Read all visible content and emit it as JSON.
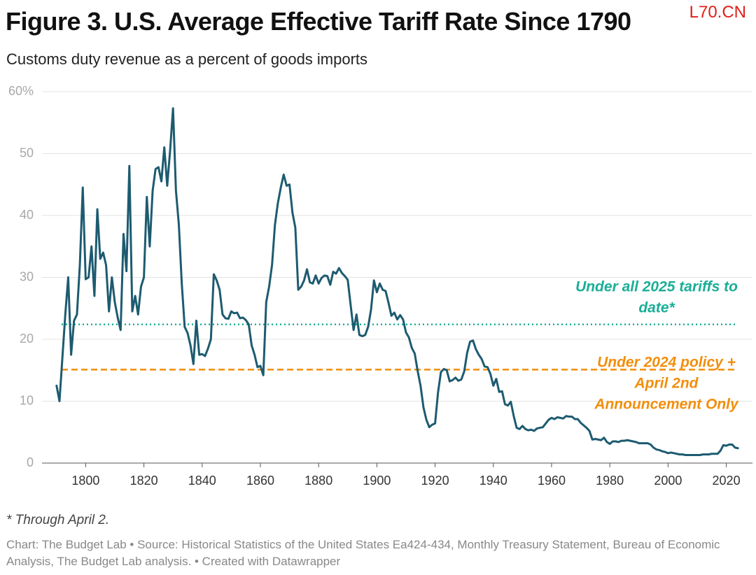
{
  "chart_data": {
    "type": "line",
    "title": "Figure 3. U.S. Average Effective Tariff Rate Since 1790",
    "subtitle": "Customs duty revenue as a percent of goods imports",
    "watermark": "L70.CN",
    "note": "* Through April 2.",
    "source": "Chart: The Budget Lab • Source: Historical Statistics of the United States Ea424-434, Monthly Treasury Statement, Bureau of Economic Analysis, The Budget Lab analysis. • Created with Datawrapper",
    "xlim": [
      1785,
      2029
    ],
    "xticks": [
      1800,
      1820,
      1840,
      1860,
      1880,
      1900,
      1920,
      1940,
      1960,
      1980,
      2000,
      2020
    ],
    "ylim": [
      0,
      60
    ],
    "yticks": [
      0,
      10,
      20,
      30,
      40,
      50,
      {
        "value": 60,
        "label": "60%"
      }
    ],
    "grid": true,
    "x": [
      1790,
      1791,
      1792,
      1793,
      1794,
      1795,
      1796,
      1797,
      1798,
      1799,
      1800,
      1801,
      1802,
      1803,
      1804,
      1805,
      1806,
      1807,
      1808,
      1809,
      1810,
      1811,
      1812,
      1813,
      1814,
      1815,
      1816,
      1817,
      1818,
      1819,
      1820,
      1821,
      1822,
      1823,
      1824,
      1825,
      1826,
      1827,
      1828,
      1829,
      1830,
      1831,
      1832,
      1833,
      1834,
      1835,
      1836,
      1837,
      1838,
      1839,
      1840,
      1841,
      1842,
      1843,
      1844,
      1845,
      1846,
      1847,
      1848,
      1849,
      1850,
      1851,
      1852,
      1853,
      1854,
      1855,
      1856,
      1857,
      1858,
      1859,
      1860,
      1861,
      1862,
      1863,
      1864,
      1865,
      1866,
      1867,
      1868,
      1869,
      1870,
      1871,
      1872,
      1873,
      1874,
      1875,
      1876,
      1877,
      1878,
      1879,
      1880,
      1881,
      1882,
      1883,
      1884,
      1885,
      1886,
      1887,
      1888,
      1889,
      1890,
      1891,
      1892,
      1893,
      1894,
      1895,
      1896,
      1897,
      1898,
      1899,
      1900,
      1901,
      1902,
      1903,
      1904,
      1905,
      1906,
      1907,
      1908,
      1909,
      1910,
      1911,
      1912,
      1913,
      1914,
      1915,
      1916,
      1917,
      1918,
      1919,
      1920,
      1921,
      1922,
      1923,
      1924,
      1925,
      1926,
      1927,
      1928,
      1929,
      1930,
      1931,
      1932,
      1933,
      1934,
      1935,
      1936,
      1937,
      1938,
      1939,
      1940,
      1941,
      1942,
      1943,
      1944,
      1945,
      1946,
      1947,
      1948,
      1949,
      1950,
      1951,
      1952,
      1953,
      1954,
      1955,
      1956,
      1957,
      1958,
      1959,
      1960,
      1961,
      1962,
      1963,
      1964,
      1965,
      1966,
      1967,
      1968,
      1969,
      1970,
      1971,
      1972,
      1973,
      1974,
      1975,
      1976,
      1977,
      1978,
      1979,
      1980,
      1981,
      1982,
      1983,
      1984,
      1985,
      1986,
      1987,
      1988,
      1989,
      1990,
      1991,
      1992,
      1993,
      1994,
      1995,
      1996,
      1997,
      1998,
      1999,
      2000,
      2001,
      2002,
      2003,
      2004,
      2005,
      2006,
      2007,
      2008,
      2009,
      2010,
      2011,
      2012,
      2013,
      2014,
      2015,
      2016,
      2017,
      2018,
      2019,
      2020,
      2021,
      2022,
      2023,
      2024
    ],
    "series": [
      {
        "color": "#1d5b70",
        "values": [
          12.5,
          10,
          17,
          24,
          30,
          17.5,
          23,
          24,
          32,
          44.5,
          29.7,
          30,
          35,
          27,
          41,
          33,
          34,
          32,
          24.5,
          30,
          26,
          23.5,
          21.5,
          37,
          31,
          48,
          24.5,
          27,
          24,
          28.5,
          30,
          43,
          35,
          44,
          47.5,
          47.8,
          45.5,
          51,
          44.8,
          50.5,
          57.3,
          44,
          38.5,
          29,
          22,
          21,
          19,
          16,
          23,
          17.5,
          17.6,
          17.3,
          18.5,
          20,
          30.5,
          29.5,
          28,
          24,
          23.4,
          23.3,
          24.5,
          24.2,
          24.3,
          23.4,
          23.5,
          23.1,
          22.4,
          19,
          17.5,
          15.5,
          15.7,
          14.2,
          26,
          28.5,
          32,
          38.5,
          42,
          44.5,
          46.6,
          44.8,
          45,
          40.5,
          38,
          28,
          28.5,
          29.5,
          31.3,
          29.2,
          29,
          30.3,
          29,
          29.9,
          30.3,
          30.2,
          28.8,
          30.9,
          30.6,
          31.5,
          30.7,
          30.2,
          29.6,
          25.5,
          21.5,
          24,
          20.7,
          20.5,
          20.7,
          22,
          24.8,
          29.5,
          27.6,
          29,
          28,
          27.8,
          25.9,
          23.8,
          24.3,
          23.2,
          23.9,
          23.2,
          21.1,
          20.3,
          18.6,
          17.7,
          14.9,
          12.5,
          9,
          7,
          5.8,
          6.2,
          6.4,
          11.4,
          14.7,
          15.2,
          15,
          13.2,
          13.4,
          13.8,
          13.3,
          13.5,
          14.8,
          17.8,
          19.6,
          19.8,
          18.4,
          17.5,
          16.8,
          15.6,
          15.5,
          14.4,
          12.5,
          13.6,
          11.5,
          11.6,
          9.5,
          9.3,
          9.9,
          7.6,
          5.7,
          5.5,
          6,
          5.5,
          5.3,
          5.4,
          5.2,
          5.6,
          5.7,
          5.8,
          6.4,
          7,
          7.3,
          7.1,
          7.4,
          7.3,
          7.2,
          7.6,
          7.5,
          7.5,
          7.1,
          7.1,
          6.5,
          6.1,
          5.7,
          5.2,
          3.8,
          3.9,
          3.8,
          3.7,
          4.1,
          3.4,
          3.1,
          3.5,
          3.5,
          3.4,
          3.6,
          3.6,
          3.7,
          3.6,
          3.5,
          3.4,
          3.2,
          3.2,
          3.2,
          3.2,
          3,
          2.5,
          2.2,
          2.1,
          1.9,
          1.8,
          1.6,
          1.7,
          1.6,
          1.5,
          1.4,
          1.4,
          1.3,
          1.3,
          1.3,
          1.3,
          1.3,
          1.3,
          1.4,
          1.4,
          1.4,
          1.5,
          1.5,
          1.5,
          2,
          2.9,
          2.8,
          3,
          3,
          2.5,
          2.4
        ]
      }
    ],
    "reference_lines": [
      {
        "value": 22.4,
        "color": "#1aae96",
        "style": "dotted",
        "label_lines": [
          "Under all 2025 tariffs to",
          "date*"
        ]
      },
      {
        "value": 15.1,
        "color": "#f28e0c",
        "style": "dashed",
        "label_lines": [
          "Under 2024 policy +",
          "April 2nd",
          "Announcement Only"
        ]
      }
    ]
  }
}
